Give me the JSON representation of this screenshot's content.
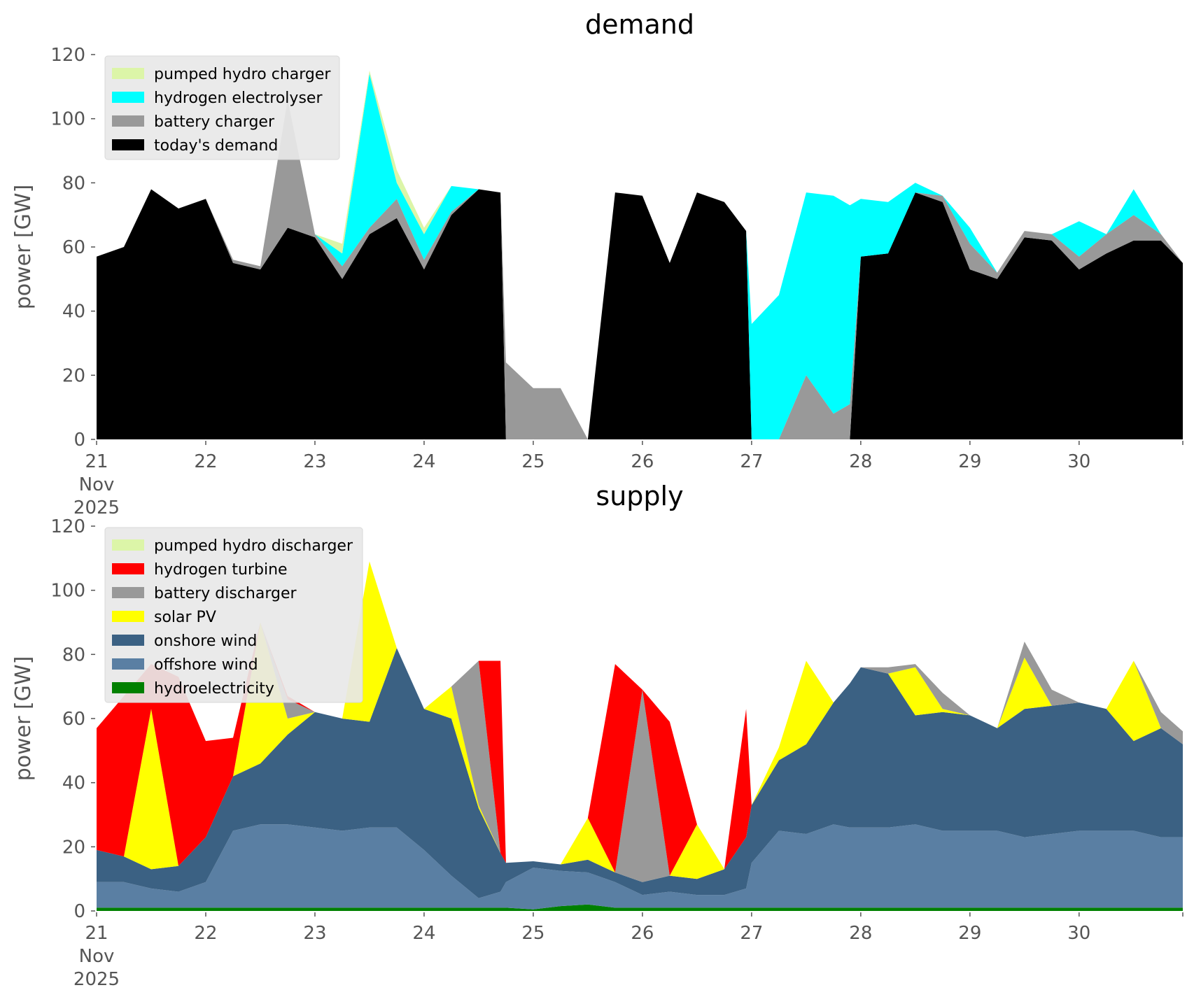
{
  "chart_data": [
    {
      "type": "area",
      "title": "demand",
      "ylabel": "power [GW]",
      "xlabel": "",
      "ylim": [
        0,
        120
      ],
      "y_ticks": [
        0,
        20,
        40,
        60,
        80,
        100,
        120
      ],
      "x_ticks": [
        {
          "x": 0,
          "label": "21",
          "sub": [
            "Nov",
            "2025"
          ]
        },
        {
          "x": 1,
          "label": "22"
        },
        {
          "x": 2,
          "label": "23"
        },
        {
          "x": 3,
          "label": "24"
        },
        {
          "x": 4,
          "label": "25"
        },
        {
          "x": 5,
          "label": "26"
        },
        {
          "x": 6,
          "label": "27"
        },
        {
          "x": 7,
          "label": "28"
        },
        {
          "x": 8,
          "label": "29"
        },
        {
          "x": 9,
          "label": "30"
        }
      ],
      "xlim": [
        0,
        9.95
      ],
      "x": [
        0,
        0.25,
        0.5,
        0.75,
        1,
        1.25,
        1.5,
        1.75,
        2,
        2.25,
        2.5,
        2.75,
        3,
        3.25,
        3.5,
        3.7,
        3.75,
        4,
        4.25,
        4.5,
        4.75,
        5,
        5.25,
        5.5,
        5.75,
        5.95,
        6,
        6.25,
        6.5,
        6.75,
        6.9,
        7,
        7.25,
        7.5,
        7.75,
        8,
        8.25,
        8.5,
        8.75,
        9,
        9.25,
        9.5,
        9.75,
        9.95
      ],
      "series": [
        {
          "name": "today's demand",
          "color": "#000000",
          "values": [
            57,
            60,
            78,
            72,
            75,
            55,
            53,
            66,
            63,
            50,
            64,
            69,
            53,
            70,
            78,
            77,
            0,
            0,
            0,
            0,
            77,
            76,
            55,
            77,
            74,
            65,
            0,
            0,
            0,
            0,
            0,
            57,
            58,
            77,
            74,
            53,
            50,
            63,
            62,
            53,
            58,
            62,
            62,
            55
          ]
        },
        {
          "name": "battery charger",
          "color": "#999999",
          "values": [
            0,
            0,
            0,
            0,
            0,
            1,
            1,
            40,
            1,
            4,
            2,
            6,
            3,
            1,
            0,
            0,
            24,
            16,
            16,
            0,
            0,
            0,
            0,
            0,
            0,
            0,
            0,
            0,
            20,
            8,
            11,
            0,
            0,
            0,
            2,
            8,
            2,
            2,
            2,
            4,
            6,
            8,
            2,
            0
          ]
        },
        {
          "name": "hydrogen electrolyser",
          "color": "#00ffff",
          "values": [
            0,
            0,
            0,
            0,
            0,
            0,
            0,
            0,
            0,
            4,
            48,
            5,
            8,
            8,
            0,
            0,
            0,
            0,
            0,
            0,
            0,
            0,
            0,
            0,
            0,
            0,
            36,
            45,
            57,
            68,
            62,
            18,
            16,
            3,
            0,
            5,
            0,
            0,
            0,
            11,
            0,
            8,
            0,
            0
          ]
        },
        {
          "name": "pumped hydro charger",
          "color": "#dcf5a8",
          "values": [
            0,
            0,
            0,
            0,
            0,
            0,
            0,
            0,
            0,
            3,
            1,
            4,
            2,
            0,
            0,
            0,
            0,
            0,
            0,
            0,
            0,
            0,
            0,
            0,
            0,
            0,
            0,
            0,
            0,
            0,
            0,
            0,
            0,
            0,
            0,
            0,
            0,
            0,
            0,
            0,
            0,
            0,
            0,
            0
          ]
        }
      ],
      "legend": {
        "placement": "upper-left",
        "entries": [
          "pumped hydro charger",
          "hydrogen electrolyser",
          "battery charger",
          "today's demand"
        ]
      }
    },
    {
      "type": "area",
      "title": "supply",
      "ylabel": "power [GW]",
      "xlabel": "",
      "ylim": [
        0,
        120
      ],
      "y_ticks": [
        0,
        20,
        40,
        60,
        80,
        100,
        120
      ],
      "x_ticks": [
        {
          "x": 0,
          "label": "21",
          "sub": [
            "Nov",
            "2025"
          ]
        },
        {
          "x": 1,
          "label": "22"
        },
        {
          "x": 2,
          "label": "23"
        },
        {
          "x": 3,
          "label": "24"
        },
        {
          "x": 4,
          "label": "25"
        },
        {
          "x": 5,
          "label": "26"
        },
        {
          "x": 6,
          "label": "27"
        },
        {
          "x": 7,
          "label": "28"
        },
        {
          "x": 8,
          "label": "29"
        },
        {
          "x": 9,
          "label": "30"
        }
      ],
      "xlim": [
        0,
        9.95
      ],
      "x": [
        0,
        0.25,
        0.5,
        0.75,
        1,
        1.25,
        1.5,
        1.75,
        2,
        2.25,
        2.5,
        2.75,
        3,
        3.25,
        3.5,
        3.7,
        3.75,
        4,
        4.25,
        4.5,
        4.75,
        5,
        5.25,
        5.5,
        5.75,
        5.95,
        6,
        6.25,
        6.5,
        6.75,
        6.9,
        7,
        7.25,
        7.5,
        7.75,
        8,
        8.25,
        8.5,
        8.75,
        9,
        9.25,
        9.5,
        9.75,
        9.95
      ],
      "series": [
        {
          "name": "hydroelectricity",
          "color": "#008000",
          "values": [
            1,
            1,
            1,
            1,
            1,
            1,
            1,
            1,
            1,
            1,
            1,
            1,
            1,
            1,
            1,
            1,
            1,
            0.5,
            1.5,
            2,
            1,
            1,
            1,
            1,
            1,
            1,
            1,
            1,
            1,
            1,
            1,
            1,
            1,
            1,
            1,
            1,
            1,
            1,
            1,
            1,
            1,
            1,
            1,
            1
          ]
        },
        {
          "name": "offshore wind",
          "color": "#5a7fa3",
          "values": [
            8,
            8,
            6,
            5,
            8,
            24,
            26,
            26,
            25,
            24,
            25,
            25,
            18,
            10,
            3,
            5,
            8,
            13,
            11,
            10,
            8,
            4,
            5,
            4,
            4,
            6,
            14,
            24,
            23,
            26,
            25,
            25,
            25,
            26,
            24,
            24,
            24,
            22,
            23,
            24,
            24,
            24,
            22,
            22
          ]
        },
        {
          "name": "onshore wind",
          "color": "#3b6183",
          "values": [
            10,
            8,
            6,
            8,
            14,
            17,
            19,
            28,
            36,
            35,
            33,
            56,
            44,
            49,
            28,
            12,
            6,
            2,
            2,
            4,
            3,
            4,
            5,
            5,
            8,
            16,
            18,
            22,
            28,
            38,
            45,
            50,
            48,
            34,
            37,
            36,
            32,
            40,
            40,
            40,
            38,
            28,
            34,
            29
          ]
        },
        {
          "name": "solar PV",
          "color": "#ffff00",
          "values": [
            0,
            0,
            50,
            0,
            0,
            0,
            44,
            5,
            0,
            0,
            50,
            0,
            0,
            10,
            1,
            0,
            0,
            0,
            0,
            13,
            0,
            0,
            0,
            17,
            0,
            0,
            0,
            4,
            26,
            0,
            0,
            0,
            0,
            15,
            1,
            0,
            0,
            16,
            0,
            0,
            0,
            25,
            0,
            0
          ]
        },
        {
          "name": "battery discharger",
          "color": "#999999",
          "values": [
            0,
            0,
            0,
            0,
            0,
            0,
            0,
            6,
            0,
            0,
            0,
            0,
            0,
            0,
            45,
            0,
            0,
            0,
            0,
            0,
            0,
            60,
            0,
            0,
            0,
            0,
            0,
            0,
            0,
            0,
            0,
            0,
            2,
            1,
            5,
            0,
            0,
            5,
            5,
            0,
            0,
            0,
            5,
            4
          ]
        },
        {
          "name": "hydrogen turbine",
          "color": "#ff0000",
          "values": [
            38,
            50,
            14,
            59,
            30,
            12,
            0,
            1,
            0,
            0,
            0,
            0,
            0,
            0,
            0,
            60,
            0,
            0,
            0,
            0,
            65,
            0,
            48,
            0,
            0,
            40,
            0,
            0,
            0,
            0,
            0,
            0,
            0,
            0,
            0,
            0,
            0,
            0,
            0,
            0,
            0,
            0,
            0,
            0
          ]
        },
        {
          "name": "pumped hydro discharger",
          "color": "#dcf5a8",
          "values": [
            0,
            0,
            0,
            0,
            0,
            0,
            0,
            0,
            0,
            0,
            0,
            0,
            0,
            0,
            0,
            0,
            0,
            0,
            0,
            0,
            0,
            0,
            0,
            0,
            0,
            0,
            0,
            0,
            0,
            0,
            0,
            0,
            0,
            0,
            0,
            0,
            0,
            0,
            0,
            0,
            0,
            0,
            0,
            0
          ]
        }
      ],
      "legend": {
        "placement": "upper-left",
        "entries": [
          "pumped hydro discharger",
          "hydrogen turbine",
          "battery discharger",
          "solar PV",
          "onshore wind",
          "offshore wind",
          "hydroelectricity"
        ]
      }
    }
  ]
}
